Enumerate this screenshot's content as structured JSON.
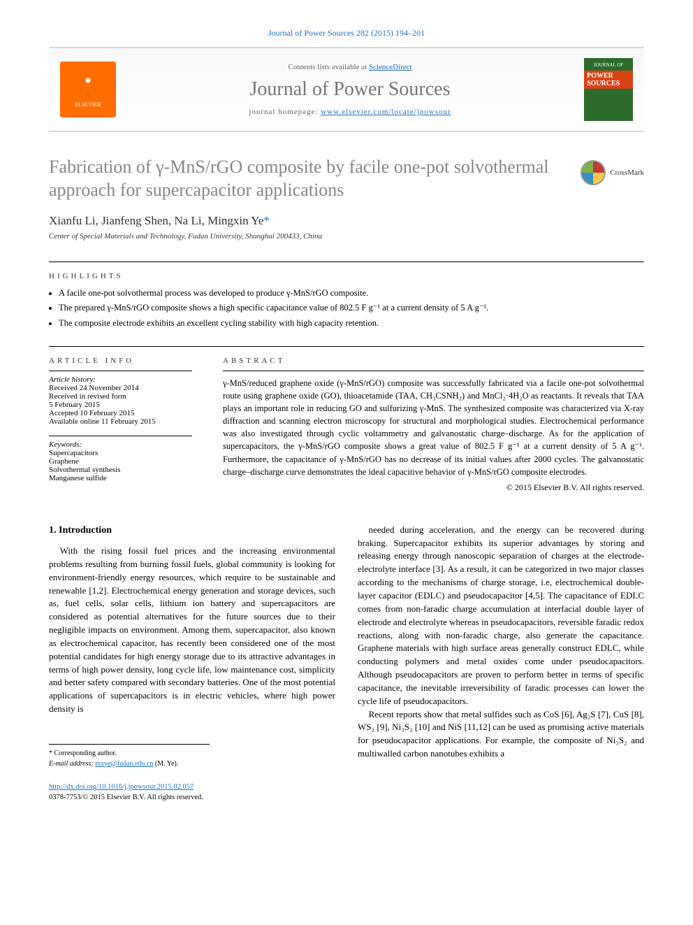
{
  "top_reference": "Journal of Power Sources 282 (2015) 194–201",
  "header": {
    "contents_prefix": "Contents lists available at ",
    "contents_link": "ScienceDirect",
    "journal_name": "Journal of Power Sources",
    "homepage_prefix": "journal homepage: ",
    "homepage_url": "www.elsevier.com/locate/jpowsour",
    "elsevier_label": "ELSEVIER",
    "cover_line1": "JOURNAL OF",
    "cover_line2": "POWER SOURCES"
  },
  "title": "Fabrication of γ-MnS/rGO composite by facile one-pot solvothermal approach for supercapacitor applications",
  "crossmark_label": "CrossMark",
  "authors": "Xianfu Li, Jianfeng Shen, Na Li, Mingxin Ye",
  "corr_mark": "*",
  "affiliation": "Center of Special Materials and Technology, Fudan University, Shanghai 200433, China",
  "highlights_head": "HIGHLIGHTS",
  "highlights": [
    "A facile one-pot solvothermal process was developed to produce γ-MnS/rGO composite.",
    "The prepared γ-MnS/rGO composite shows a high specific capacitance value of 802.5 F g⁻¹ at a current density of 5 A g⁻¹.",
    "The composite electrode exhibits an excellent cycling stability with high capacity retention."
  ],
  "article_info_head": "ARTICLE INFO",
  "history_label": "Article history:",
  "history": [
    "Received 24 November 2014",
    "Received in revised form",
    "5 February 2015",
    "Accepted 10 February 2015",
    "Available online 11 February 2015"
  ],
  "keywords_label": "Keywords:",
  "keywords": [
    "Supercapacitors",
    "Graphene",
    "Solvothermal synthesis",
    "Manganese sulfide"
  ],
  "abstract_head": "ABSTRACT",
  "abstract": "γ-MnS/reduced graphene oxide (γ-MnS/rGO) composite was successfully fabricated via a facile one-pot solvothermal route using graphene oxide (GO), thioacetamide (TAA, CH₃CSNH₂) and MnCl₂·4H₂O as reactants. It reveals that TAA plays an important role in reducing GO and sulfurizing γ-MnS. The synthesized composite was characterized via X-ray diffraction and scanning electron microscopy for structural and morphological studies. Electrochemical performance was also investigated through cyclic voltammetry and galvanostatic charge–discharge. As for the application of supercapacitors, the γ-MnS/rGO composite shows a great value of 802.5 F g⁻¹ at a current density of 5 A g⁻¹. Furthermore, the capacitance of γ-MnS/rGO has no decrease of its initial values after 2000 cycles. The galvanostatic charge–discharge curve demonstrates the ideal capacitive behavior of γ-MnS/rGO composite electrodes.",
  "copyright": "© 2015 Elsevier B.V. All rights reserved.",
  "intro_head": "1. Introduction",
  "intro_col1": "With the rising fossil fuel prices and the increasing environmental problems resulting from burning fossil fuels, global community is looking for environment-friendly energy resources, which require to be sustainable and renewable [1,2]. Electrochemical energy generation and storage devices, such as, fuel cells, solar cells, lithium ion battery and supercapacitors are considered as potential alternatives for the future sources due to their negligible impacts on environment. Among them, supercapacitor, also known as electrochemical capacitor, has recently been considered one of the most potential candidates for high energy storage due to its attractive advantages in terms of high power density, long cycle life, low maintenance cost, simplicity and better safety compared with secondary batteries. One of the most potential applications of supercapacitors is in electric vehicles, where high power density is",
  "intro_col2_p1": "needed during acceleration, and the energy can be recovered during braking. Supercapacitor exhibits its superior advantages by storing and releasing energy through nanoscopic separation of charges at the electrode-electrolyte interface [3]. As a result, it can be categorized in two major classes according to the mechanisms of charge storage, i.e, electrochemical double-layer capacitor (EDLC) and pseudocapacitor [4,5]. The capacitance of EDLC comes from non-faradic charge accumulation at interfacial double layer of electrode and electrolyte whereas in pseudocapacitors, reversible faradic redox reactions, along with non-faradic charge, also generate the capacitance. Graphene materials with high surface areas generally construct EDLC, while conducting polymers and metal oxides come under pseudocapacitors. Although pseudocapacitors are proven to perform better in terms of specific capacitance, the inevitable irreversibility of faradic processes can lower the cycle life of pseudocapacitors.",
  "intro_col2_p2": "Recent reports show that metal sulfides such as CoS [6], Ag₂S [7], CuS [8], WS₂ [9], Ni₃S₂ [10] and NiS [11,12] can be used as promising active materials for pseudocapacitor applications. For example, the composite of Ni₃S₂ and multiwalled carbon nanotubes exhibits a",
  "footnote": {
    "corr": "* Corresponding author.",
    "email_label": "E-mail address: ",
    "email": "mxye@fudan.edu.cn",
    "email_suffix": " (M. Ye)."
  },
  "doi": "http://dx.doi.org/10.1016/j.jpowsour.2015.02.057",
  "issn": "0378-7753/© 2015 Elsevier B.V. All rights reserved.",
  "colors": {
    "link": "#1f6fbf",
    "title_gray": "#878787",
    "elsevier_orange": "#ff6c00"
  }
}
